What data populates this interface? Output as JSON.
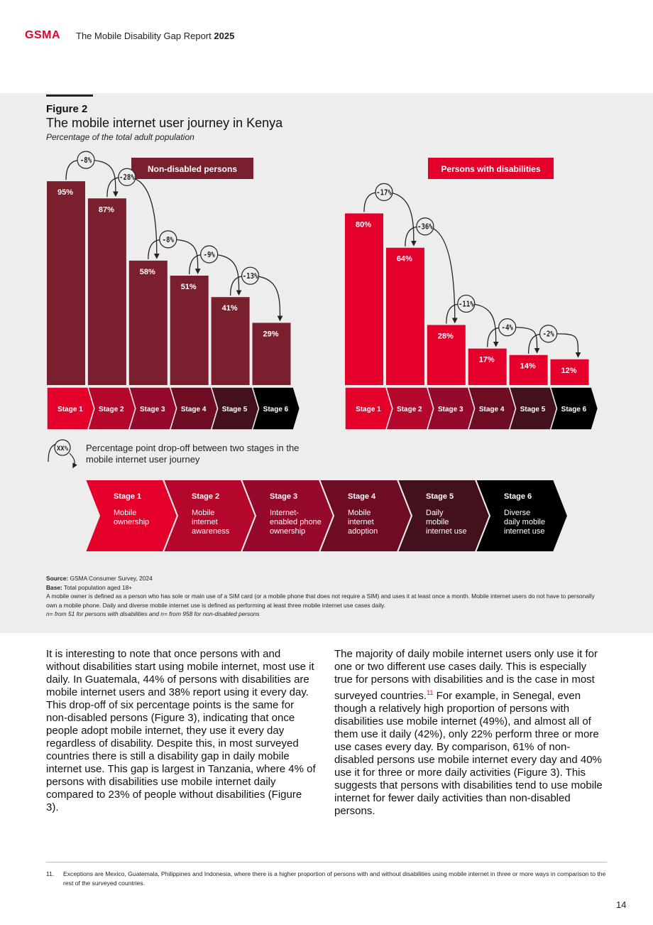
{
  "header": {
    "logo": "GSMA",
    "report_title": "The Mobile Disability Gap Report",
    "report_year": "2025"
  },
  "figure": {
    "label": "Figure 2",
    "title": "The mobile internet user journey in Kenya",
    "subtitle": "Percentage of the total adult population"
  },
  "chart_data": [
    {
      "type": "bar",
      "group_label": "Non-disabled persons",
      "categories": [
        "Stage 1",
        "Stage 2",
        "Stage 3",
        "Stage 4",
        "Stage 5",
        "Stage 6"
      ],
      "values": [
        95,
        87,
        58,
        51,
        41,
        29
      ],
      "value_labels": [
        "95%",
        "87%",
        "58%",
        "51%",
        "41%",
        "29%"
      ],
      "dropoffs": [
        "-8%",
        "-28%",
        "-8%",
        "-9%",
        "-13%"
      ],
      "color": "#7a1f2d",
      "label_color": "#7a1f2d",
      "ylim": [
        0,
        100
      ]
    },
    {
      "type": "bar",
      "group_label": "Persons with disabilities",
      "categories": [
        "Stage 1",
        "Stage 2",
        "Stage 3",
        "Stage 4",
        "Stage 5",
        "Stage 6"
      ],
      "values": [
        80,
        64,
        28,
        17,
        14,
        12
      ],
      "value_labels": [
        "80%",
        "64%",
        "28%",
        "17%",
        "14%",
        "12%"
      ],
      "dropoffs": [
        "-17%",
        "-36%",
        "-11%",
        "-4%",
        "-2%"
      ],
      "color": "#e4002b",
      "label_color": "#e4002b",
      "ylim": [
        0,
        100
      ]
    }
  ],
  "stage_colors": [
    "#e4002b",
    "#b5062b",
    "#950a2c",
    "#6e0c24",
    "#43111b",
    "#000000"
  ],
  "legend": {
    "badge": "XX%",
    "text": "Percentage point drop-off between two stages in the mobile internet user journey"
  },
  "stages": [
    {
      "title": "Stage 1",
      "desc": [
        "Mobile",
        "ownership"
      ]
    },
    {
      "title": "Stage 2",
      "desc": [
        "Mobile",
        "internet",
        "awareness"
      ]
    },
    {
      "title": "Stage 3",
      "desc": [
        "Internet-",
        "enabled phone",
        "ownership"
      ]
    },
    {
      "title": "Stage 4",
      "desc": [
        "Mobile",
        "internet",
        "adoption"
      ]
    },
    {
      "title": "Stage 5",
      "desc": [
        "Daily",
        "mobile",
        "internet use"
      ]
    },
    {
      "title": "Stage 6",
      "desc": [
        "Diverse",
        "daily mobile",
        "internet use"
      ]
    }
  ],
  "source": {
    "source_label": "Source:",
    "source_text": "GSMA Consumer Survey, 2024",
    "base_label": "Base:",
    "base_text": "Total population aged 18+",
    "definition": "A mobile owner is defined as a person who has sole or main use of a SIM card (or a mobile phone that does not require a SIM) and uses it at least once a month. Mobile internet users do not have to personally own a mobile phone. Daily and diverse mobile internet use is defined as performing at least three mobile internet use cases daily.",
    "sample": "n= from 51 for persons with disabilities and n= from 958 for non-disabled persons"
  },
  "body": {
    "left": "It is interesting to note that once persons with and without disabilities start using mobile internet, most use it daily. In Guatemala, 44% of persons with disabilities are mobile internet users and 38% report using it every day. This drop-off of six percentage points is the same for non-disabled persons (Figure 3), indicating that once people adopt mobile internet, they use it every day regardless of disability. Despite this, in most surveyed countries there is still a disability gap in daily mobile internet use. This gap is largest in Tanzania, where 4% of persons with disabilities use mobile internet daily compared to 23% of people without disabilities (Figure 3).",
    "right_part1": "The majority of daily mobile internet users only use it for one or two different use cases daily. This is especially true for persons with disabilities and is the case in most surveyed countries.",
    "right_ref": "11",
    "right_part2": " For example, in Senegal, even though a relatively high proportion of persons with disabilities use mobile internet (49%), and almost all of them use it daily (42%), only 22% perform three or more use cases every day. By comparison, 61% of non-disabled persons use mobile internet every day and 40% use it for three or more daily activities (Figure 3). This suggests that persons with disabilities tend to use mobile internet for fewer daily activities than non-disabled persons."
  },
  "footnote": {
    "number": "11.",
    "text": "Exceptions are Mexico, Guatemala, Philippines and Indonesia, where there is a higher proportion of persons with and without disabilities using mobile internet in three or more ways in comparison to the rest of the surveyed countries."
  },
  "page_number": "14"
}
